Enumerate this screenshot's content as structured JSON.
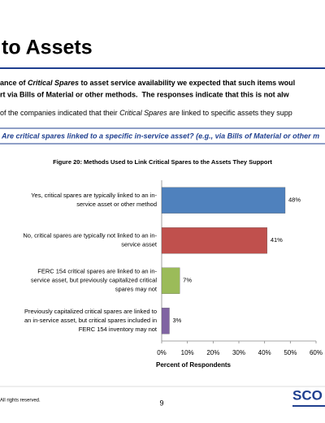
{
  "slide": {
    "title": "to Assets",
    "intro_line1": [
      "ance of ",
      "Critical Spares",
      " to asset service availability we expected that such items woul"
    ],
    "intro_line2": "rt via Bills of Material or other methods.  The responses indicate that this is not alw",
    "finding": [
      "of the companies indicated that their ",
      "Critical Spares",
      " are linked to specific assets they supp"
    ],
    "question": "Are critical spares linked to a specific in-service asset? (e.g., via Bills of Material or other m",
    "footer": "All rights reserved.",
    "page": "9",
    "logo": "SCO"
  },
  "chart_data": {
    "type": "hbar",
    "title": "Figure 20:  Methods Used to Link Critical Spares to the Assets They Support",
    "categories": [
      [
        "Yes, critical spares are typically linked to an in-",
        "service asset or other method"
      ],
      [
        "No, critical spares are typically not linked to an in-",
        "service asset"
      ],
      [
        "FERC 154 critical spares are linked to an in-",
        "service asset, but previously capitalized critical",
        "spares may not"
      ],
      [
        "Previously capitalized critical spares are linked to",
        "an in-service asset, but critical spares included in",
        "FERC 154 inventory may not"
      ]
    ],
    "values": [
      48,
      41,
      7,
      3
    ],
    "value_labels": [
      "48%",
      "41%",
      "7%",
      "3%"
    ],
    "colors": [
      "#4f81bd",
      "#c0504d",
      "#9bbb59",
      "#8064a2"
    ],
    "xlim": [
      0,
      60
    ],
    "xticks": [
      {
        "value": 0,
        "label": "0%"
      },
      {
        "value": 10,
        "label": "10%"
      },
      {
        "value": 20,
        "label": "20%"
      },
      {
        "value": 30,
        "label": "30%"
      },
      {
        "value": 40,
        "label": "40%"
      },
      {
        "value": 50,
        "label": "50%"
      },
      {
        "value": 60,
        "label": "60%"
      }
    ],
    "xlabel": "Percent of Respondents"
  }
}
